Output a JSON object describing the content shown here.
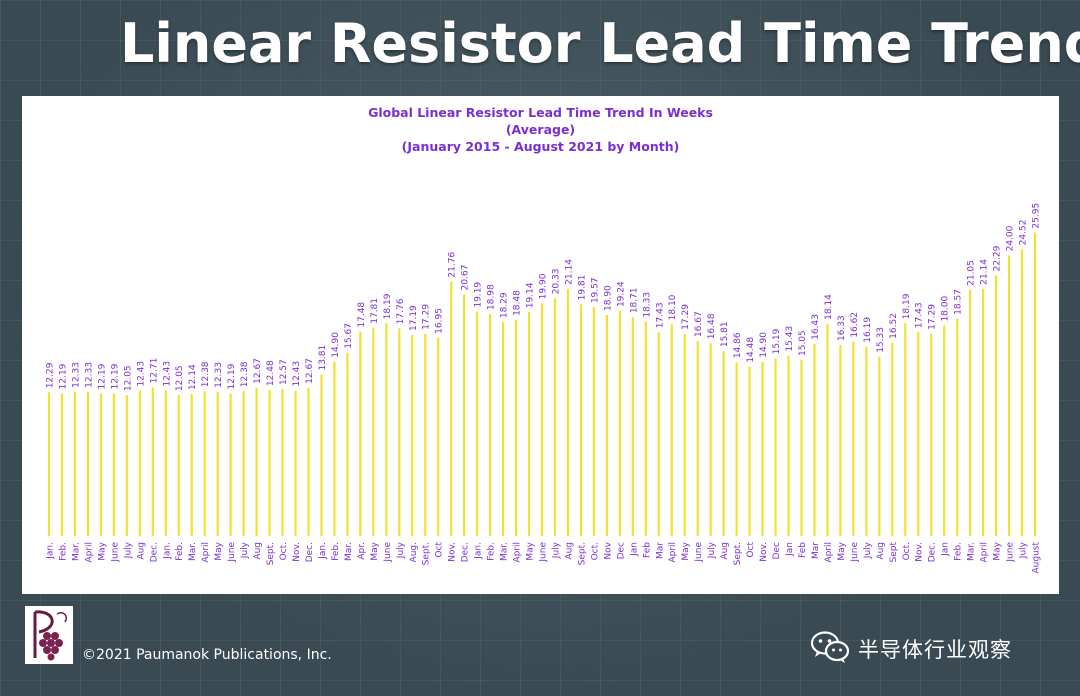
{
  "slide": {
    "title": "Linear Resistor Lead Time Trend",
    "copyright": "©2021 Paumanok Publications, Inc.",
    "watermark": "半导体行业观察",
    "logo_icon": "paumanok-grape-logo",
    "watermark_icon": "wechat-icon"
  },
  "chart_data": {
    "type": "bar",
    "title": "Global Linear Resistor Lead Time Trend In Weeks",
    "subtitle": "(Average)",
    "subtitle2": "(January 2015 - August 2021 by Month)",
    "xlabel": "",
    "ylabel": "",
    "bar_color": "#f2e033",
    "label_color": "#7b2fd0",
    "ylim": [
      0,
      26
    ],
    "grid": false,
    "categories": [
      "Jan.",
      "Feb.",
      "Mar.",
      "April",
      "May",
      "June",
      "July",
      "Aug",
      "Dec.",
      "Jan.",
      "Feb.",
      "Mar.",
      "April",
      "May",
      "June",
      "July",
      "Aug",
      "Sept.",
      "Oct.",
      "Nov.",
      "Dec.",
      "Jan.",
      "Feb.",
      "Mar.",
      "Apr.",
      "May",
      "June",
      "July",
      "Aug.",
      "Sept.",
      "Oct",
      "Nov.",
      "Dec.",
      "Jan.",
      "Feb.",
      "Mar.",
      "April",
      "May",
      "June",
      "July",
      "Aug",
      "Sept.",
      "Oct.",
      "Nov",
      "Dec",
      "Jan",
      "Feb",
      "Mar",
      "April",
      "May",
      "June",
      "July",
      "Aug",
      "Sept.",
      "Oct",
      "Nov.",
      "Dec",
      "Jan",
      "Feb",
      "Mar",
      "April",
      "May",
      "June",
      "July",
      "Aug",
      "Sept",
      "Oct.",
      "Nov.",
      "Dec.",
      "Jan",
      "Feb.",
      "Mar.",
      "April",
      "May",
      "June",
      "July",
      "August"
    ],
    "values": [
      12.29,
      12.19,
      12.33,
      12.33,
      12.19,
      12.19,
      12.05,
      12.43,
      12.71,
      12.43,
      12.05,
      12.14,
      12.38,
      12.33,
      12.19,
      12.38,
      12.67,
      12.48,
      12.57,
      12.43,
      12.67,
      13.81,
      14.9,
      15.67,
      17.48,
      17.81,
      18.19,
      17.76,
      17.19,
      17.29,
      16.95,
      21.76,
      20.67,
      19.19,
      18.98,
      18.29,
      18.48,
      19.14,
      19.9,
      20.33,
      21.14,
      19.81,
      19.57,
      18.9,
      19.24,
      18.71,
      18.33,
      17.43,
      18.1,
      17.29,
      16.67,
      16.48,
      15.81,
      14.86,
      14.48,
      14.9,
      15.19,
      15.43,
      15.05,
      16.43,
      18.14,
      16.33,
      16.62,
      16.19,
      15.33,
      16.52,
      18.19,
      17.43,
      17.29,
      18.0,
      18.57,
      21.05,
      21.14,
      22.29,
      24.0,
      24.52,
      25.95
    ],
    "value_labels": [
      "12.29",
      "12.19",
      "12.33",
      "12.33",
      "12.19",
      "12.19",
      "12.05",
      "12.43",
      "12.71",
      "12.43",
      "12.05",
      "12.14",
      "12.38",
      "12.33",
      "12.19",
      "12.38",
      "12.67",
      "12.48",
      "12.57",
      "12.43",
      "12.67",
      "13.81",
      "14.90",
      "15.67",
      "17.48",
      "17.81",
      "18.19",
      "17.76",
      "17.19",
      "17.29",
      "16.95",
      "21.76",
      "20.67",
      "19.19",
      "18.98",
      "18.29",
      "18.48",
      "19.14",
      "19.90",
      "20.33",
      "21.14",
      "19.81",
      "19.57",
      "18.90",
      "19.24",
      "18.71",
      "18.33",
      "17.43",
      "18.10",
      "17.29",
      "16.67",
      "16.48",
      "15.81",
      "14.86",
      "14.48",
      "14.90",
      "15.19",
      "15.43",
      "15.05",
      "16.43",
      "18.14",
      "16.33",
      "16.62",
      "16.19",
      "15.33",
      "16.52",
      "18.19",
      "17.43",
      "17.29",
      "18.00",
      "18.57",
      "21.05",
      "21.14",
      "22.29",
      "24.00",
      "24.52",
      "25.95"
    ]
  }
}
